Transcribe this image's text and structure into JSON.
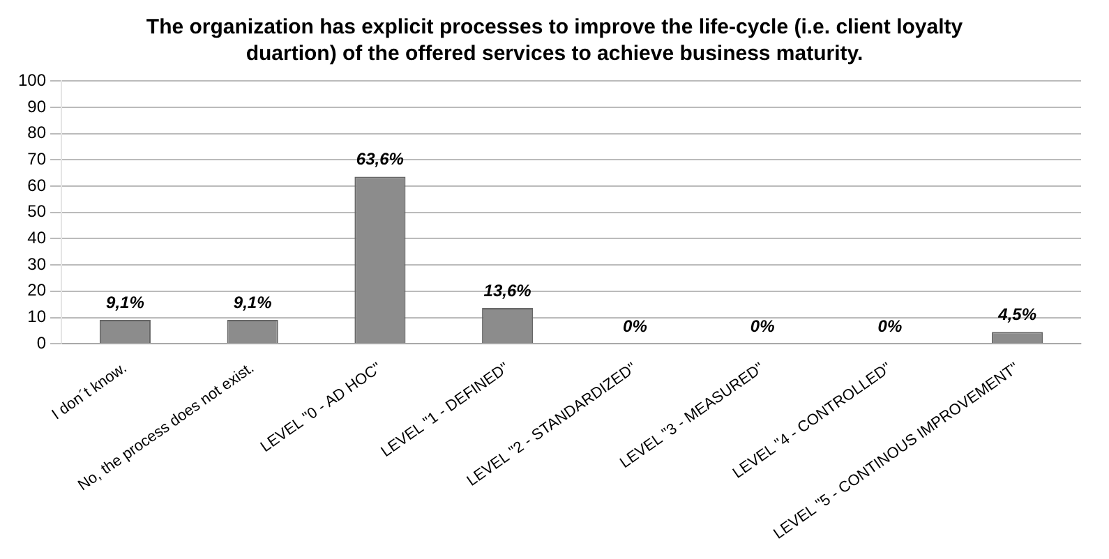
{
  "chart_data": {
    "type": "bar",
    "title": "The organization has explicit processes to improve the life-cycle (i.e. client loyalty duartion) of the offered services to achieve business maturity.",
    "categories": [
      "I don´t know.",
      "No, the process does not exist.",
      "LEVEL \"0 - AD HOC\"",
      "LEVEL \"1 - DEFINED\"",
      "LEVEL \"2 - STANDARDIZED\"",
      "LEVEL \"3 - MEASURED\"",
      "LEVEL \"4 - CONTROLLED\"",
      "LEVEL \"5 - CONTINOUS IMPROVEMENT\""
    ],
    "values": [
      9.1,
      9.1,
      63.6,
      13.6,
      0,
      0,
      0,
      4.5
    ],
    "value_labels": [
      "9,1%",
      "9,1%",
      "63,6%",
      "13,6%",
      "0%",
      "0%",
      "0%",
      "4,5%"
    ],
    "color": "#8c8c8c",
    "ylim": [
      0,
      100
    ],
    "yticks": [
      0,
      10,
      20,
      30,
      40,
      50,
      60,
      70,
      80,
      90,
      100
    ],
    "grid": "y",
    "legend": false
  }
}
